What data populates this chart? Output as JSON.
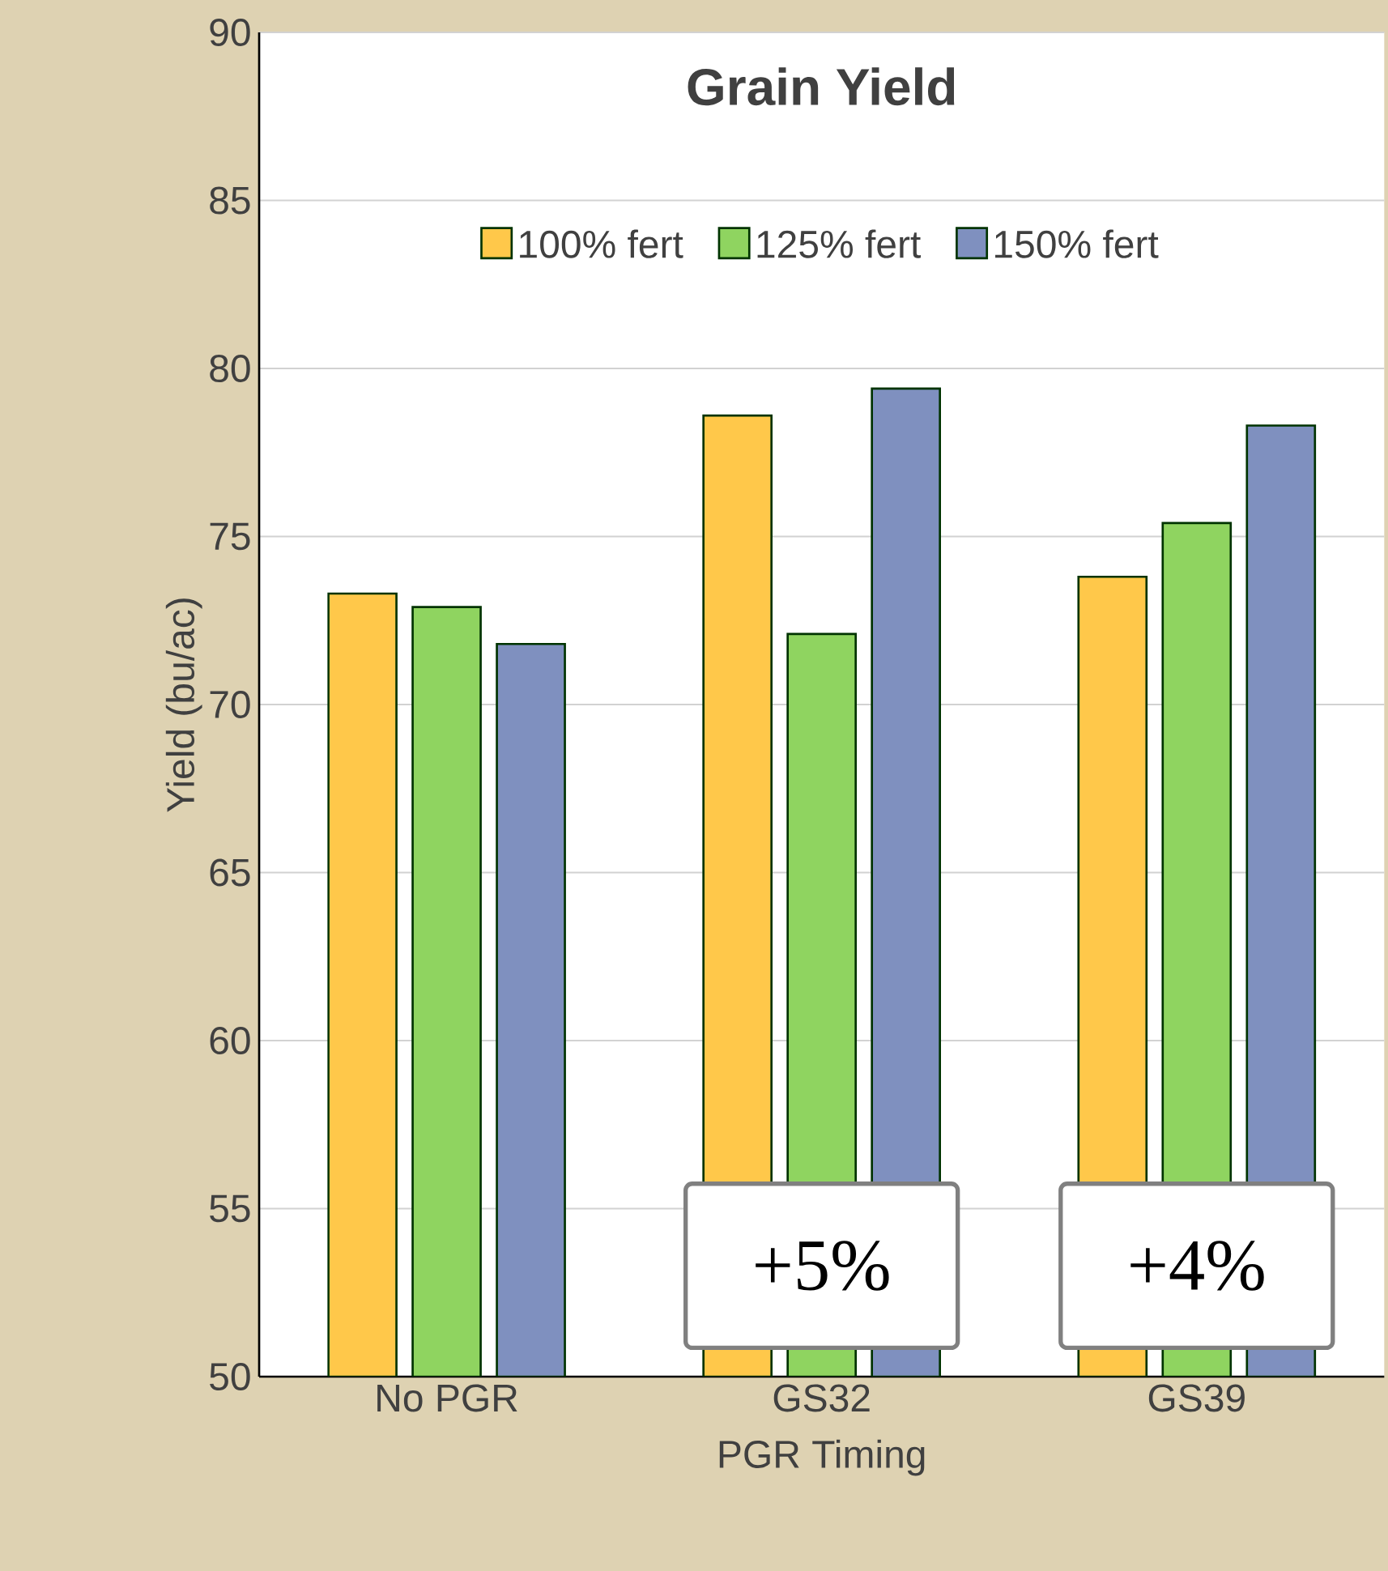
{
  "chart_data": {
    "type": "bar",
    "title": "Grain Yield",
    "xlabel": "PGR Timing",
    "ylabel": "Yield (bu/ac)",
    "categories": [
      "No PGR",
      "GS32",
      "GS39"
    ],
    "series": [
      {
        "name": "100% fert",
        "color": "#ffc84a",
        "values": [
          73.3,
          78.6,
          73.8
        ]
      },
      {
        "name": "125% fert",
        "color": "#8fd460",
        "values": [
          72.9,
          72.1,
          75.4
        ]
      },
      {
        "name": "150% fert",
        "color": "#7f90bf",
        "values": [
          71.8,
          79.4,
          78.3
        ]
      }
    ],
    "ylim": [
      50,
      90
    ],
    "yticks": [
      50,
      55,
      60,
      65,
      70,
      75,
      80,
      85,
      90
    ],
    "grid": "y",
    "legend": "top",
    "annotations": [
      "+5%",
      "+4%"
    ]
  }
}
